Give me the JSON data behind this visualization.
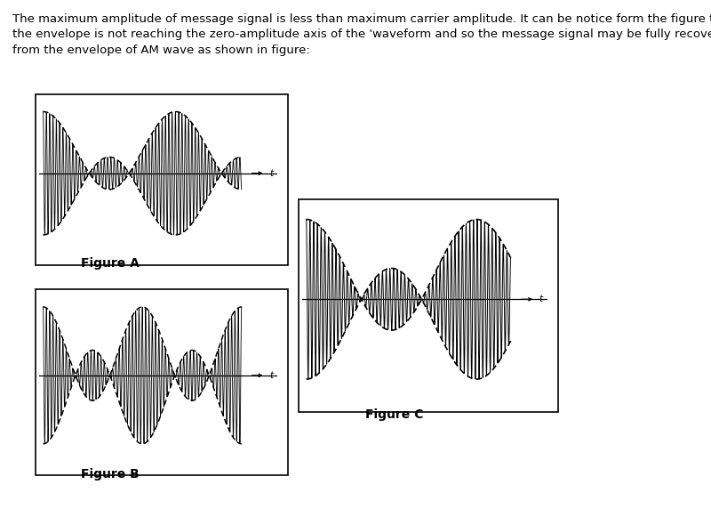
{
  "text_line1": "The maximum amplitude of message signal is less than maximum carrier amplitude. It can be notice form the figure that",
  "text_line2": "the envelope is not reaching the zero-amplitude axis of the 'waveform and so the message signal may be fully recovered",
  "text_line3": "from the envelope of AM wave as shown in figure:",
  "figA_label": "Figure A",
  "figB_label": "Figure B",
  "figC_label": "Figure C",
  "bg_color": "#ffffff",
  "wave_color": "#000000",
  "envelope_color": "#000000",
  "axis_color": "#000000",
  "text_fontsize": 9.5,
  "label_fontsize": 10,
  "figA_fc": 60,
  "figA_fm": 1.5,
  "figA_Ac": 0.35,
  "figA_Am": 0.6,
  "figB_fc": 60,
  "figB_fm": 2.0,
  "figB_Ac": 0.3,
  "figB_Am": 0.65,
  "figC_fc": 55,
  "figC_fm": 1.2,
  "figC_Ac": 0.3,
  "figC_Am": 0.68
}
